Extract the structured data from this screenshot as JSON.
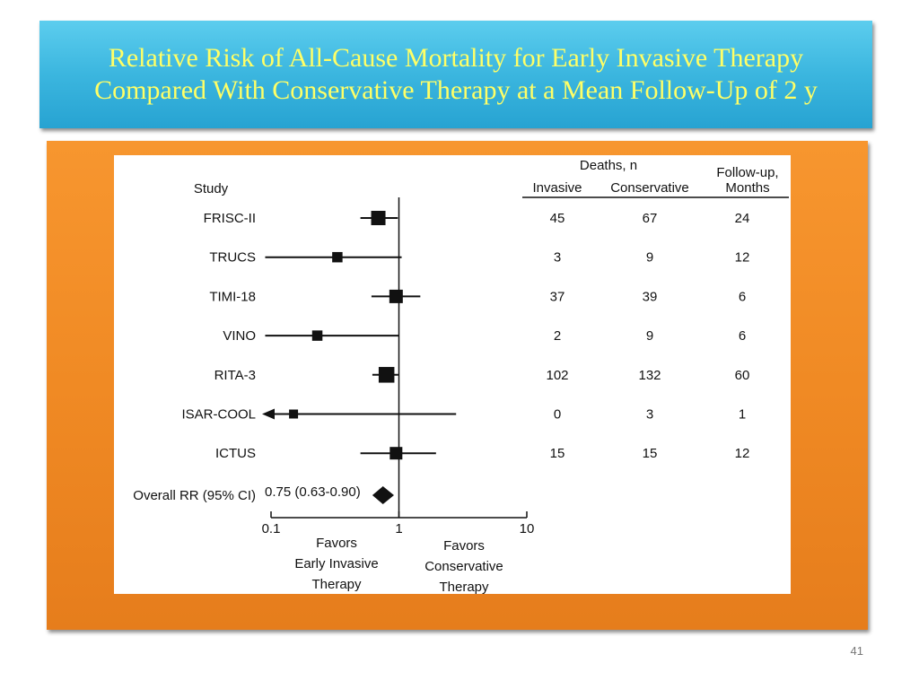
{
  "slide": {
    "title_lines": [
      "Relative Risk of All-Cause Mortality for Early Invasive Therapy",
      "Compared With Conservative Therapy at a Mean Follow-Up of 2 y"
    ],
    "number": "41"
  },
  "colors": {
    "title_bg": "#3bb6df",
    "title_text": "#ffff66",
    "panel_bg": "#f08a24",
    "figure_bg": "#ffffff"
  },
  "chart_data": {
    "type": "forest",
    "xscale": "log",
    "xlim": [
      0.1,
      10
    ],
    "xticks": [
      "0.1",
      "1",
      "10"
    ],
    "x_tick_values": [
      0.1,
      1,
      10
    ],
    "reference_value": 1,
    "study_header": "Study",
    "favors_left": [
      "Favors",
      "Early Invasive",
      "Therapy"
    ],
    "favors_right": [
      "Favors",
      "Conservative",
      "Therapy"
    ],
    "table_headers": {
      "deaths_group": "Deaths, n",
      "invasive": "Invasive",
      "conservative": "Conservative",
      "followup_line1": "Follow-up,",
      "followup_line2": "Months"
    },
    "studies": [
      {
        "name": "FRISC-II",
        "rr": 0.69,
        "lo": 0.5,
        "hi": 0.98,
        "weight": 1.3,
        "invasive": "45",
        "conservative": "67",
        "followup": "24"
      },
      {
        "name": "TRUCS",
        "rr": 0.33,
        "lo": 0.09,
        "hi": 1.05,
        "weight": 0.85,
        "invasive": "3",
        "conservative": "9",
        "followup": "12"
      },
      {
        "name": "TIMI-18",
        "rr": 0.95,
        "lo": 0.61,
        "hi": 1.47,
        "weight": 1.2,
        "invasive": "37",
        "conservative": "39",
        "followup": "6"
      },
      {
        "name": "VINO",
        "rr": 0.23,
        "lo": 0.09,
        "hi": 1.0,
        "weight": 0.85,
        "invasive": "2",
        "conservative": "9",
        "followup": "6"
      },
      {
        "name": "RITA-3",
        "rr": 0.8,
        "lo": 0.62,
        "hi": 0.99,
        "weight": 1.45,
        "invasive": "102",
        "conservative": "132",
        "followup": "60"
      },
      {
        "name": "ISAR-COOL",
        "rr": 0.15,
        "lo": 0.1,
        "hi": 2.8,
        "weight": 0.7,
        "invasive": "0",
        "conservative": "3",
        "followup": "1",
        "lo_truncated": true
      },
      {
        "name": "ICTUS",
        "rr": 0.95,
        "lo": 0.5,
        "hi": 1.95,
        "weight": 1.1,
        "invasive": "15",
        "conservative": "15",
        "followup": "12"
      }
    ],
    "overall": {
      "label": "Overall RR (95% CI)",
      "text": "0.75 (0.63-0.90)",
      "rr": 0.75,
      "lo": 0.63,
      "hi": 0.9
    }
  }
}
